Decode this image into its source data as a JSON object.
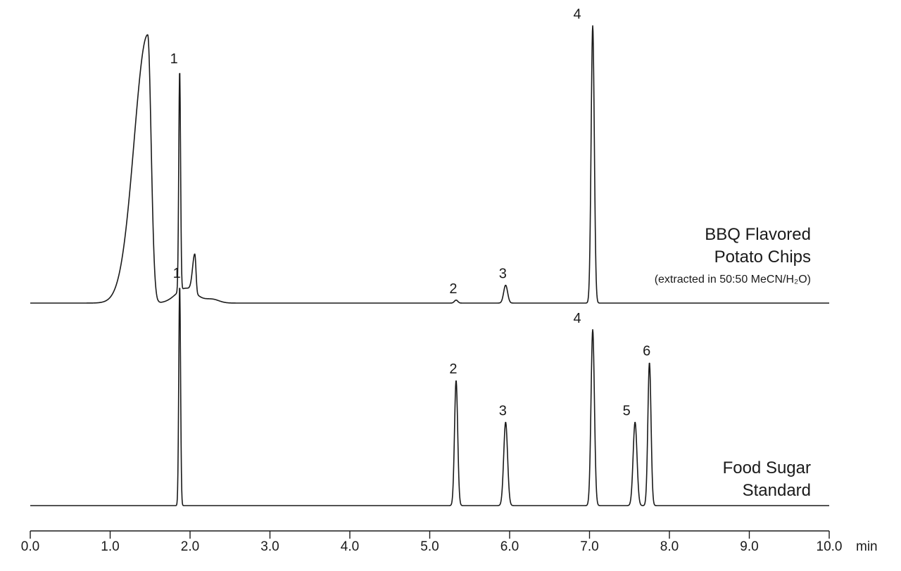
{
  "chart_data": {
    "type": "line",
    "title": "",
    "xlabel": "",
    "ylabel": "",
    "x_unit": "min",
    "xlim": [
      0,
      10
    ],
    "x_ticks": [
      "0.0",
      "1.0",
      "2.0",
      "3.0",
      "4.0",
      "5.0",
      "6.0",
      "7.0",
      "8.0",
      "9.0",
      "10.0"
    ],
    "grid": false,
    "legend": "none",
    "y_scale": "relative intensity (stacked, offset traces)",
    "series": [
      {
        "name": "BBQ Flavored Potato Chips",
        "label_lines": [
          "BBQ Flavored",
          "Potato Chips"
        ],
        "note": "(extracted in 50:50 MeCN/H₂O)",
        "peaks": [
          {
            "label": "",
            "rt": 1.47,
            "height": 0.9
          },
          {
            "label": "1",
            "rt": 1.87,
            "height": 0.74
          },
          {
            "label": "",
            "rt": 2.06,
            "height": 0.13
          },
          {
            "label": "2",
            "rt": 5.33,
            "height": 0.01
          },
          {
            "label": "3",
            "rt": 5.95,
            "height": 0.06
          },
          {
            "label": "4",
            "rt": 7.04,
            "height": 0.93
          }
        ]
      },
      {
        "name": "Food Sugar Standard",
        "label_lines": [
          "Food Sugar",
          "Standard"
        ],
        "note": "",
        "peaks": [
          {
            "label": "1",
            "rt": 1.87,
            "height": 0.74
          },
          {
            "label": "2",
            "rt": 5.33,
            "height": 0.42
          },
          {
            "label": "3",
            "rt": 5.95,
            "height": 0.28
          },
          {
            "label": "4",
            "rt": 7.04,
            "height": 0.59
          },
          {
            "label": "5",
            "rt": 7.57,
            "height": 0.28
          },
          {
            "label": "6",
            "rt": 7.75,
            "height": 0.48
          }
        ]
      }
    ]
  }
}
